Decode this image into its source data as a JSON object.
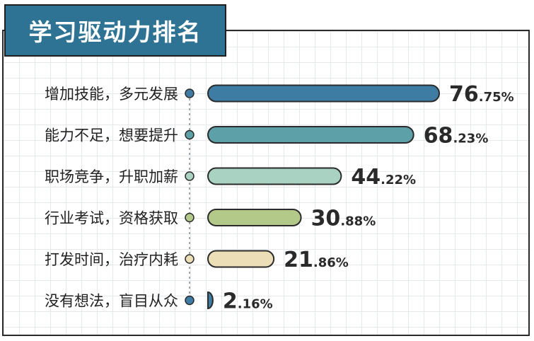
{
  "chart_data": {
    "type": "bar",
    "orientation": "horizontal",
    "title": "学习驱动力排名",
    "categories": [
      "增加技能，多元发展",
      "能力不足，想要提升",
      "职场竞争，升职加薪",
      "行业考试，资格获取",
      "打发时间，治疗内耗",
      "没有想法，盲目从众"
    ],
    "values": [
      76.75,
      68.23,
      44.22,
      30.88,
      21.86,
      2.16
    ],
    "value_labels": [
      {
        "major": "76",
        "minor": ".75%"
      },
      {
        "major": "68",
        "minor": ".23%"
      },
      {
        "major": "44",
        "minor": ".22%"
      },
      {
        "major": "30",
        "minor": ".88%"
      },
      {
        "major": "21",
        "minor": ".86%"
      },
      {
        "major": "2",
        "minor": ".16%"
      }
    ],
    "xlim": [
      0,
      100
    ],
    "colors": [
      "#3e7ca3",
      "#5ea0a8",
      "#a9d2c2",
      "#b3c98a",
      "#ecdfb8",
      "#3e7ca3"
    ],
    "dot_colors": [
      "#3e7ca3",
      "#5ea0a8",
      "#a9d2c2",
      "#b3c98a",
      "#ecdfb8",
      "#3e7ca3"
    ],
    "grid": true
  }
}
